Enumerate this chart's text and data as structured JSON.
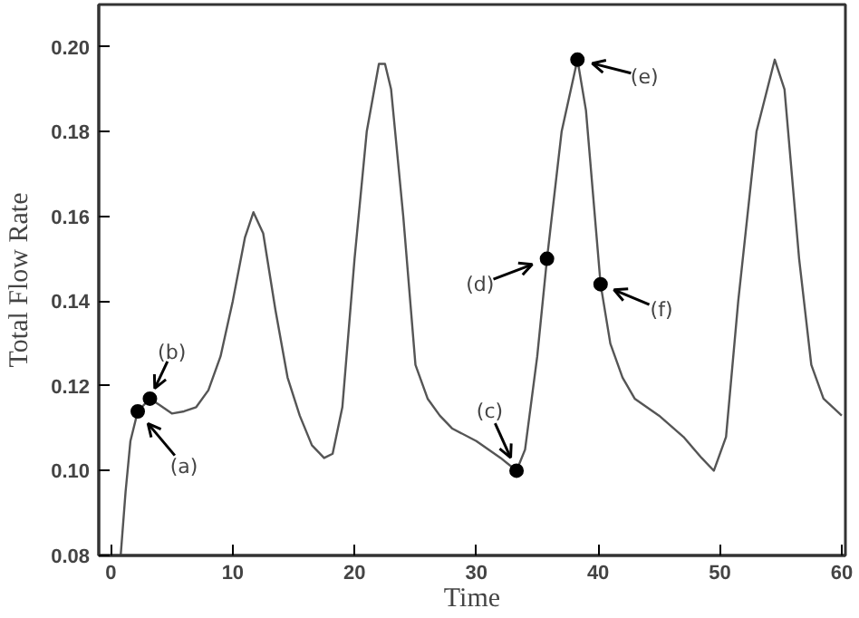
{
  "chart_data": {
    "type": "line",
    "xlabel": "Time",
    "ylabel": "Total Flow Rate",
    "xlim": [
      -1,
      60.3
    ],
    "ylim": [
      0.08,
      0.21
    ],
    "xticks": [
      0,
      10,
      20,
      30,
      40,
      50,
      60
    ],
    "yticks": [
      {
        "value": 0.08,
        "label": "0.08"
      },
      {
        "value": 0.1,
        "label": "0.10"
      },
      {
        "value": 0.12,
        "label": "0.12"
      },
      {
        "value": 0.14,
        "label": "0.14"
      },
      {
        "value": 0.16,
        "label": "0.16"
      },
      {
        "value": 0.18,
        "label": "0.18"
      },
      {
        "value": 0.2,
        "label": "0.20"
      }
    ],
    "grid": false,
    "series": [
      {
        "color": "#555555",
        "marker": "none",
        "line_style": "solid",
        "x": [
          0.8,
          1.2,
          1.6,
          2.2,
          3.2,
          4,
          5,
          6,
          7,
          8,
          9,
          10,
          11,
          11.7,
          12.5,
          13.5,
          14.5,
          15.5,
          16.5,
          17.5,
          18.2,
          19,
          20,
          21,
          22,
          22.5,
          23,
          24,
          25,
          26,
          27,
          28,
          30,
          32,
          33.3,
          34,
          35,
          35.8,
          37,
          38.3,
          39,
          40.2,
          41,
          42,
          43,
          45,
          47,
          48.5,
          49.5,
          50.5,
          51.5,
          53,
          54.5,
          55.3,
          56.5,
          57.5,
          58.5,
          60
        ],
        "values": [
          0.08,
          0.095,
          0.107,
          0.114,
          0.117,
          0.1155,
          0.1135,
          0.114,
          0.115,
          0.119,
          0.127,
          0.14,
          0.155,
          0.161,
          0.156,
          0.138,
          0.122,
          0.113,
          0.106,
          0.103,
          0.104,
          0.115,
          0.15,
          0.18,
          0.196,
          0.196,
          0.19,
          0.16,
          0.125,
          0.117,
          0.113,
          0.11,
          0.107,
          0.103,
          0.1,
          0.105,
          0.127,
          0.15,
          0.18,
          0.197,
          0.185,
          0.144,
          0.13,
          0.122,
          0.117,
          0.113,
          0.108,
          0.103,
          0.1,
          0.108,
          0.14,
          0.18,
          0.197,
          0.19,
          0.15,
          0.125,
          0.117,
          0.113
        ]
      },
      {
        "type": "scatter",
        "color": "#000000",
        "marker": "circle",
        "x": [
          2.2,
          3.2,
          33.3,
          35.8,
          38.3,
          40.2
        ],
        "values": [
          0.114,
          0.117,
          0.1,
          0.15,
          0.197,
          0.144
        ]
      }
    ],
    "annotations": [
      {
        "text": "(a)",
        "x": 2.2,
        "y": 0.114
      },
      {
        "text": "(b)",
        "x": 3.2,
        "y": 0.117
      },
      {
        "text": "(c)",
        "x": 33.3,
        "y": 0.1
      },
      {
        "text": "(d)",
        "x": 35.8,
        "y": 0.15
      },
      {
        "text": "(e)",
        "x": 38.3,
        "y": 0.197
      },
      {
        "text": "(f)",
        "x": 40.2,
        "y": 0.144
      }
    ]
  }
}
